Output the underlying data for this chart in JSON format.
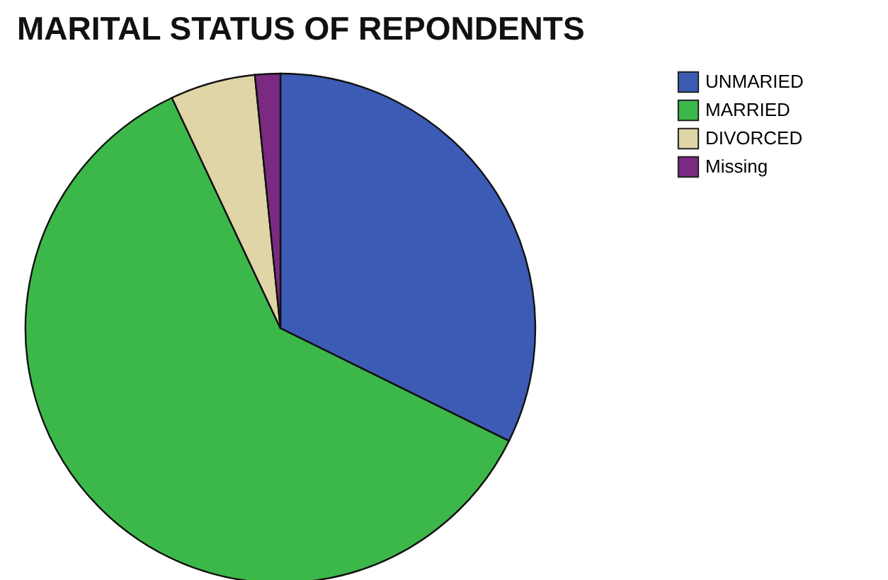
{
  "chart_data": {
    "type": "pie",
    "title": "MARITAL STATUS OF REPONDENTS",
    "categories": [
      "UNMARIED",
      "MARRIED",
      "DIVORCED",
      "Missing"
    ],
    "values": [
      32.3,
      60.7,
      5.4,
      1.6
    ],
    "colors": [
      "#3c5bb5",
      "#3cb84a",
      "#e0d5a6",
      "#7a2a80"
    ],
    "legend": "top right"
  }
}
